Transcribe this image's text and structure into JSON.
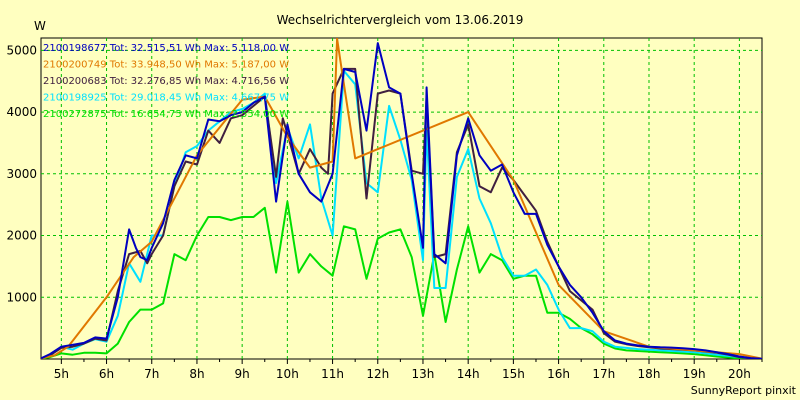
{
  "chart_data": {
    "type": "line",
    "title": "Wechselrichtervergleich vom 13.06.2019",
    "ylabel": "W",
    "footer": "SunnyReport pinxit",
    "ylim": [
      0,
      5200
    ],
    "xlim": [
      4.55,
      20.5
    ],
    "y_ticks": [
      1000,
      2000,
      3000,
      4000,
      5000
    ],
    "x_ticks": [
      5,
      6,
      7,
      8,
      9,
      10,
      11,
      12,
      13,
      14,
      15,
      16,
      17,
      18,
      19,
      20
    ],
    "x_tick_labels": [
      "5h",
      "6h",
      "7h",
      "8h",
      "9h",
      "10h",
      "11h",
      "12h",
      "13h",
      "14h",
      "15h",
      "16h",
      "17h",
      "18h",
      "19h",
      "20h"
    ],
    "grid": true,
    "legend_position": "top-left",
    "series": [
      {
        "name": "2100198677 Tot: 32.515,51 Wh Max: 5.118,00 W",
        "color": "#0000c0",
        "x": [
          4.55,
          4.75,
          5.0,
          5.25,
          5.5,
          5.75,
          6.0,
          6.25,
          6.5,
          6.65,
          6.75,
          6.9,
          7.0,
          7.25,
          7.5,
          7.75,
          8.0,
          8.25,
          8.5,
          8.75,
          9.0,
          9.25,
          9.5,
          9.75,
          10.0,
          10.25,
          10.5,
          10.75,
          11.0,
          11.25,
          11.5,
          11.75,
          12.0,
          12.25,
          12.5,
          12.75,
          13.0,
          13.08,
          13.25,
          13.5,
          13.75,
          14.0,
          14.25,
          14.5,
          14.75,
          15.0,
          15.25,
          15.5,
          15.75,
          16.0,
          16.25,
          16.5,
          16.75,
          17.0,
          17.25,
          17.5,
          17.75,
          18.0,
          18.25,
          18.5,
          18.75,
          19.0,
          19.25,
          19.5,
          19.75,
          20.0,
          20.25,
          20.5
        ],
        "y": [
          10,
          80,
          200,
          230,
          260,
          350,
          330,
          1000,
          2100,
          1800,
          1650,
          1600,
          1800,
          2200,
          2900,
          3300,
          3250,
          3880,
          3850,
          3950,
          4000,
          4150,
          4250,
          2550,
          3800,
          3000,
          2700,
          2550,
          3000,
          4700,
          4650,
          3700,
          5118,
          4400,
          4300,
          3000,
          1800,
          4400,
          1700,
          1550,
          3300,
          3900,
          3300,
          3050,
          3150,
          2700,
          2350,
          2350,
          1850,
          1500,
          1200,
          1000,
          750,
          450,
          300,
          250,
          220,
          200,
          190,
          185,
          175,
          160,
          140,
          110,
          80,
          40,
          15,
          5
        ]
      },
      {
        "name": "2100200749 Tot: 33.948,50 Wh Max: 5.187,00 W",
        "color": "#e07800",
        "x": [
          4.55,
          4.85,
          5.15,
          6.0,
          6.6,
          7.0,
          8.0,
          9.0,
          9.5,
          10.0,
          10.5,
          11.0,
          11.1,
          11.2,
          11.5,
          12.0,
          14.0,
          15.0,
          16.0,
          17.0,
          18.0,
          20.0,
          20.5
        ],
        "y": [
          10,
          60,
          200,
          1000,
          1650,
          1900,
          3300,
          4200,
          4250,
          3600,
          3100,
          3200,
          5187,
          4700,
          3250,
          3400,
          4000,
          2900,
          1200,
          450,
          200,
          80,
          5
        ]
      },
      {
        "name": "2100200683 Tot: 32.276,85 Wh Max: 4.716,56 W",
        "color": "#402040",
        "x": [
          4.55,
          4.75,
          5.0,
          5.25,
          5.5,
          5.75,
          6.0,
          6.25,
          6.5,
          6.75,
          6.9,
          7.0,
          7.25,
          7.5,
          7.75,
          8.0,
          8.25,
          8.5,
          8.75,
          9.0,
          9.25,
          9.5,
          9.75,
          9.9,
          10.0,
          10.25,
          10.5,
          10.75,
          10.9,
          11.0,
          11.25,
          11.5,
          11.75,
          12.0,
          12.25,
          12.5,
          12.75,
          13.0,
          13.08,
          13.25,
          13.5,
          13.75,
          14.0,
          14.25,
          14.5,
          14.75,
          15.0,
          15.25,
          15.5,
          15.75,
          16.0,
          16.25,
          16.5,
          16.75,
          17.0,
          17.25,
          17.5,
          17.75,
          18.0,
          18.25,
          18.5,
          18.75,
          19.0,
          19.25,
          19.5,
          19.75,
          20.0,
          20.25,
          20.5
        ],
        "y": [
          10,
          60,
          180,
          200,
          250,
          330,
          300,
          1100,
          1700,
          1750,
          1550,
          1700,
          2000,
          2800,
          3200,
          3150,
          3700,
          3500,
          3900,
          3950,
          4100,
          4250,
          2950,
          3900,
          3650,
          3000,
          3400,
          3100,
          3000,
          4300,
          4700,
          4700,
          2600,
          4300,
          4350,
          4300,
          3050,
          3000,
          4250,
          1650,
          1700,
          3350,
          3800,
          2800,
          2700,
          3100,
          2900,
          2650,
          2400,
          1900,
          1500,
          1100,
          950,
          800,
          420,
          280,
          240,
          210,
          190,
          170,
          160,
          150,
          140,
          120,
          100,
          70,
          30,
          10,
          5
        ]
      },
      {
        "name": "2100198925 Tot: 29.018,45 Wh Max: 4.667,75 W",
        "color": "#00e0ff",
        "x": [
          4.55,
          4.75,
          5.0,
          5.25,
          5.5,
          5.75,
          6.0,
          6.25,
          6.5,
          6.75,
          7.0,
          7.25,
          7.5,
          7.75,
          8.0,
          8.25,
          8.5,
          8.75,
          9.0,
          9.25,
          9.5,
          9.75,
          10.0,
          10.25,
          10.5,
          10.75,
          11.0,
          11.25,
          11.5,
          11.75,
          12.0,
          12.25,
          12.5,
          12.75,
          13.0,
          13.08,
          13.25,
          13.5,
          13.75,
          14.0,
          14.25,
          14.5,
          14.75,
          15.0,
          15.25,
          15.5,
          15.75,
          16.0,
          16.25,
          16.5,
          16.75,
          17.0,
          17.25,
          17.5,
          17.75,
          18.0,
          18.25,
          18.5,
          18.75,
          19.0,
          19.25,
          19.5,
          19.75,
          20.0,
          20.25,
          20.5
        ],
        "y": [
          10,
          50,
          200,
          150,
          250,
          320,
          280,
          700,
          1550,
          1250,
          2000,
          2000,
          2800,
          3350,
          3450,
          3700,
          3850,
          4000,
          4050,
          4150,
          4300,
          2850,
          3750,
          3250,
          3800,
          2600,
          2000,
          4667,
          4450,
          2850,
          2700,
          4100,
          3550,
          2900,
          1600,
          3750,
          1150,
          1150,
          2950,
          3400,
          2600,
          2200,
          1650,
          1350,
          1350,
          1450,
          1200,
          800,
          500,
          500,
          450,
          280,
          200,
          180,
          160,
          150,
          140,
          130,
          120,
          110,
          90,
          70,
          50,
          30,
          10,
          5
        ]
      },
      {
        "name": "2100272875 Tot: 16.654,75 Wh Max: 2.554,00 W",
        "color": "#00e000",
        "x": [
          4.55,
          4.75,
          5.0,
          5.25,
          5.5,
          5.75,
          6.0,
          6.25,
          6.5,
          6.75,
          7.0,
          7.25,
          7.5,
          7.75,
          8.0,
          8.25,
          8.5,
          8.75,
          9.0,
          9.25,
          9.5,
          9.75,
          10.0,
          10.25,
          10.5,
          10.75,
          11.0,
          11.25,
          11.5,
          11.75,
          12.0,
          12.25,
          12.5,
          12.75,
          13.0,
          13.25,
          13.5,
          13.75,
          14.0,
          14.25,
          14.5,
          14.75,
          15.0,
          15.25,
          15.5,
          15.75,
          16.0,
          16.25,
          16.5,
          16.75,
          17.0,
          17.25,
          17.5,
          17.75,
          18.0,
          18.25,
          18.5,
          18.75,
          19.0,
          19.25,
          19.5,
          19.75,
          20.0,
          20.25,
          20.5
        ],
        "y": [
          5,
          30,
          90,
          70,
          100,
          100,
          90,
          250,
          600,
          800,
          800,
          900,
          1700,
          1600,
          2000,
          2300,
          2300,
          2250,
          2300,
          2300,
          2450,
          1400,
          2550,
          1400,
          1700,
          1500,
          1350,
          2150,
          2100,
          1300,
          1950,
          2050,
          2100,
          1650,
          700,
          1700,
          600,
          1450,
          2150,
          1400,
          1700,
          1600,
          1300,
          1350,
          1350,
          750,
          750,
          650,
          500,
          400,
          250,
          170,
          140,
          130,
          120,
          110,
          100,
          90,
          80,
          60,
          40,
          25,
          10,
          5,
          5
        ]
      }
    ]
  }
}
